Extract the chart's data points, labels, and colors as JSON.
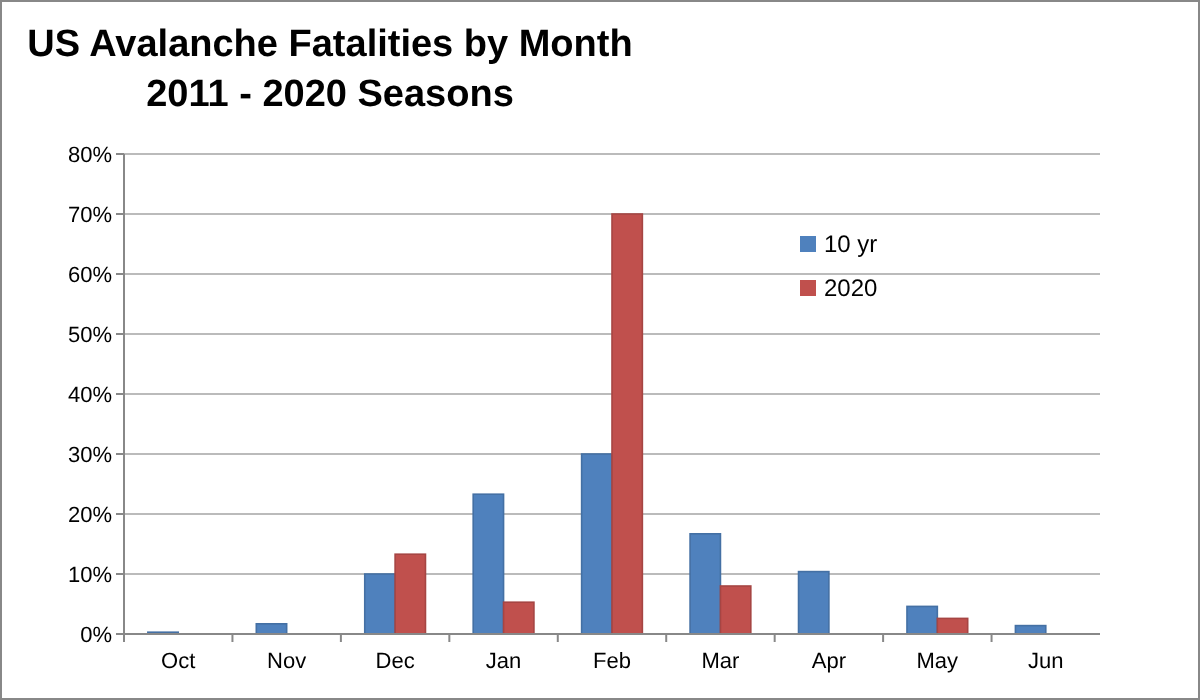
{
  "chart_data": {
    "type": "bar",
    "title": "US Avalanche Fatalities by Month\n2011 - 2020 Seasons",
    "categories": [
      "Oct",
      "Nov",
      "Dec",
      "Jan",
      "Feb",
      "Mar",
      "Apr",
      "May",
      "Jun"
    ],
    "series": [
      {
        "name": "10 yr",
        "color": "#4f81bd",
        "values": [
          0.3,
          1.7,
          10,
          23.3,
          30,
          16.7,
          10.4,
          4.6,
          1.4
        ]
      },
      {
        "name": "2020",
        "color": "#c0504d",
        "values": [
          0,
          0,
          13.3,
          5.3,
          70,
          8,
          0,
          2.6,
          0
        ]
      }
    ],
    "ylim": [
      0,
      80
    ],
    "yticks": [
      {
        "value": 0,
        "label": "0%"
      },
      {
        "value": 10,
        "label": "10%"
      },
      {
        "value": 20,
        "label": "20%"
      },
      {
        "value": 30,
        "label": "30%"
      },
      {
        "value": 40,
        "label": "40%"
      },
      {
        "value": 50,
        "label": "50%"
      },
      {
        "value": 60,
        "label": "60%"
      },
      {
        "value": 70,
        "label": "70%"
      },
      {
        "value": 80,
        "label": "80%"
      }
    ],
    "grid": "y",
    "legend": "top right"
  }
}
